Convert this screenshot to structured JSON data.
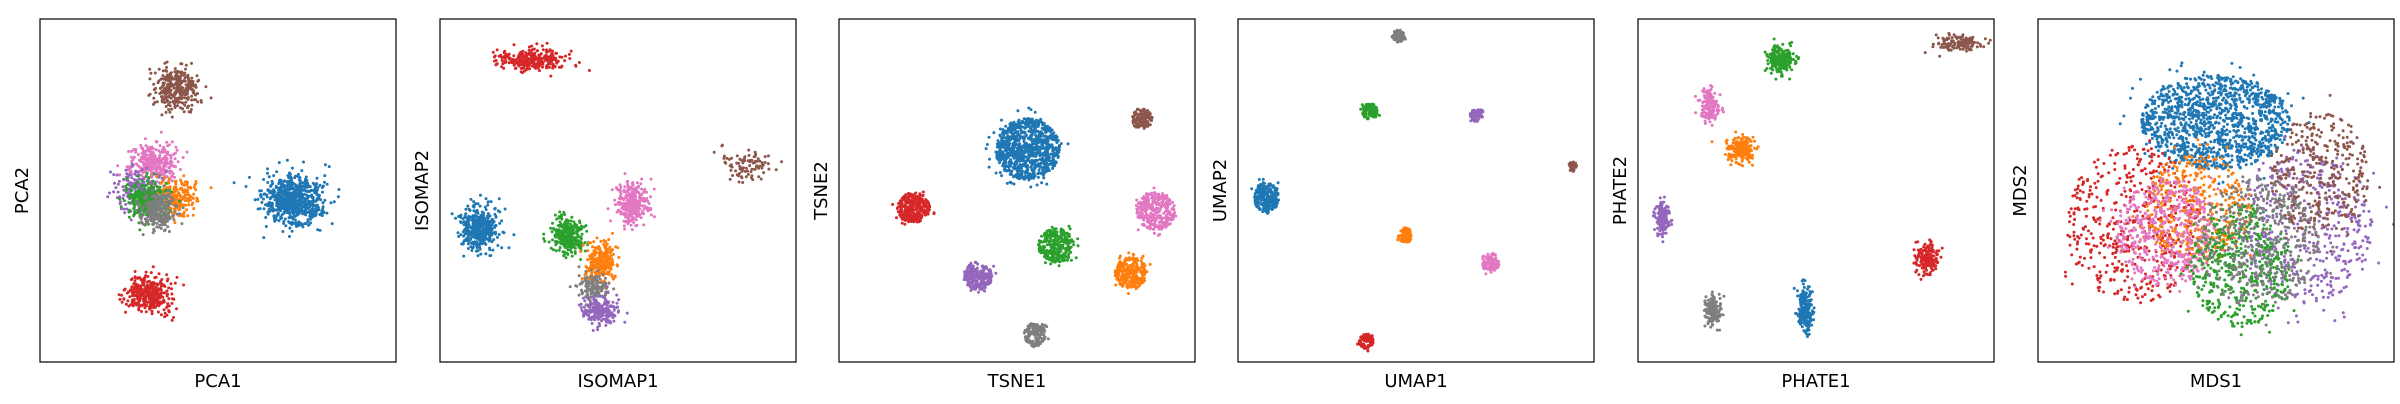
{
  "colors": {
    "blue": "#1f77b4",
    "orange": "#ff7f0e",
    "green": "#2ca02c",
    "red": "#d62728",
    "purple": "#9467bd",
    "brown": "#8c564b",
    "pink": "#e377c2",
    "gray": "#7f7f7f"
  },
  "chart_data": [
    {
      "type": "scatter",
      "xlabel": "PCA1",
      "ylabel": "PCA2",
      "xticks": [],
      "yticks": [],
      "grid": false,
      "clusters": [
        {
          "color": "blue",
          "center": [
            0.71,
            0.47
          ],
          "spread": [
            0.075,
            0.065
          ],
          "n": 700,
          "shape": "gauss"
        },
        {
          "color": "red",
          "center": [
            0.31,
            0.2
          ],
          "spread": [
            0.055,
            0.05
          ],
          "n": 350,
          "shape": "gauss"
        },
        {
          "color": "brown",
          "center": [
            0.38,
            0.8
          ],
          "spread": [
            0.055,
            0.06
          ],
          "n": 320,
          "shape": "gauss"
        },
        {
          "color": "pink",
          "center": [
            0.32,
            0.58
          ],
          "spread": [
            0.06,
            0.055
          ],
          "n": 320,
          "shape": "gauss"
        },
        {
          "color": "purple",
          "center": [
            0.28,
            0.5
          ],
          "spread": [
            0.055,
            0.055
          ],
          "n": 220,
          "shape": "gauss"
        },
        {
          "color": "orange",
          "center": [
            0.38,
            0.48
          ],
          "spread": [
            0.055,
            0.05
          ],
          "n": 240,
          "shape": "gauss"
        },
        {
          "color": "green",
          "center": [
            0.3,
            0.47
          ],
          "spread": [
            0.055,
            0.05
          ],
          "n": 260,
          "shape": "gauss"
        },
        {
          "color": "gray",
          "center": [
            0.33,
            0.44
          ],
          "spread": [
            0.045,
            0.05
          ],
          "n": 260,
          "shape": "gauss"
        }
      ]
    },
    {
      "type": "scatter",
      "xlabel": "ISOMAP1",
      "ylabel": "ISOMAP2",
      "xticks": [],
      "yticks": [],
      "grid": false,
      "clusters": [
        {
          "color": "blue",
          "center": [
            0.11,
            0.39
          ],
          "spread": [
            0.045,
            0.055
          ],
          "n": 450,
          "shape": "gauss"
        },
        {
          "color": "red",
          "center": [
            0.26,
            0.88
          ],
          "spread": [
            0.085,
            0.03
          ],
          "n": 280,
          "shape": "gauss"
        },
        {
          "color": "brown",
          "center": [
            0.86,
            0.58
          ],
          "spread": [
            0.07,
            0.045
          ],
          "n": 90,
          "shape": "gauss"
        },
        {
          "color": "pink",
          "center": [
            0.54,
            0.46
          ],
          "spread": [
            0.04,
            0.055
          ],
          "n": 300,
          "shape": "gauss"
        },
        {
          "color": "green",
          "center": [
            0.36,
            0.37
          ],
          "spread": [
            0.04,
            0.05
          ],
          "n": 300,
          "shape": "gauss"
        },
        {
          "color": "orange",
          "center": [
            0.45,
            0.29
          ],
          "spread": [
            0.04,
            0.055
          ],
          "n": 260,
          "shape": "gauss"
        },
        {
          "color": "gray",
          "center": [
            0.43,
            0.22
          ],
          "spread": [
            0.04,
            0.035
          ],
          "n": 140,
          "shape": "gauss"
        },
        {
          "color": "purple",
          "center": [
            0.45,
            0.15
          ],
          "spread": [
            0.045,
            0.035
          ],
          "n": 220,
          "shape": "gauss"
        }
      ]
    },
    {
      "type": "scatter",
      "xlabel": "TSNE1",
      "ylabel": "TSNE2",
      "xticks": [],
      "yticks": [],
      "grid": false,
      "clusters": [
        {
          "color": "blue",
          "center": [
            0.53,
            0.62
          ],
          "spread": [
            0.09,
            0.09
          ],
          "n": 900,
          "shape": "disk"
        },
        {
          "color": "red",
          "center": [
            0.21,
            0.45
          ],
          "spread": [
            0.045,
            0.045
          ],
          "n": 280,
          "shape": "disk"
        },
        {
          "color": "brown",
          "center": [
            0.85,
            0.71
          ],
          "spread": [
            0.03,
            0.03
          ],
          "n": 120,
          "shape": "disk"
        },
        {
          "color": "pink",
          "center": [
            0.89,
            0.44
          ],
          "spread": [
            0.055,
            0.055
          ],
          "n": 320,
          "shape": "disk"
        },
        {
          "color": "green",
          "center": [
            0.61,
            0.34
          ],
          "spread": [
            0.05,
            0.05
          ],
          "n": 300,
          "shape": "disk"
        },
        {
          "color": "orange",
          "center": [
            0.82,
            0.26
          ],
          "spread": [
            0.045,
            0.045
          ],
          "n": 260,
          "shape": "disk"
        },
        {
          "color": "purple",
          "center": [
            0.39,
            0.25
          ],
          "spread": [
            0.04,
            0.04
          ],
          "n": 220,
          "shape": "disk"
        },
        {
          "color": "gray",
          "center": [
            0.55,
            0.08
          ],
          "spread": [
            0.03,
            0.035
          ],
          "n": 150,
          "shape": "disk"
        }
      ]
    },
    {
      "type": "scatter",
      "xlabel": "UMAP1",
      "ylabel": "UMAP2",
      "xticks": [],
      "yticks": [],
      "grid": false,
      "clusters": [
        {
          "color": "blue",
          "center": [
            0.08,
            0.48
          ],
          "spread": [
            0.035,
            0.045
          ],
          "n": 260,
          "shape": "disk"
        },
        {
          "color": "gray",
          "center": [
            0.45,
            0.95
          ],
          "spread": [
            0.018,
            0.018
          ],
          "n": 60,
          "shape": "disk"
        },
        {
          "color": "green",
          "center": [
            0.37,
            0.73
          ],
          "spread": [
            0.022,
            0.025
          ],
          "n": 90,
          "shape": "disk"
        },
        {
          "color": "purple",
          "center": [
            0.67,
            0.72
          ],
          "spread": [
            0.018,
            0.02
          ],
          "n": 70,
          "shape": "disk"
        },
        {
          "color": "brown",
          "center": [
            0.94,
            0.57
          ],
          "spread": [
            0.012,
            0.015
          ],
          "n": 30,
          "shape": "disk"
        },
        {
          "color": "orange",
          "center": [
            0.47,
            0.37
          ],
          "spread": [
            0.02,
            0.022
          ],
          "n": 80,
          "shape": "disk"
        },
        {
          "color": "pink",
          "center": [
            0.71,
            0.29
          ],
          "spread": [
            0.025,
            0.028
          ],
          "n": 100,
          "shape": "disk"
        },
        {
          "color": "red",
          "center": [
            0.36,
            0.06
          ],
          "spread": [
            0.02,
            0.022
          ],
          "n": 80,
          "shape": "disk"
        }
      ]
    },
    {
      "type": "scatter",
      "xlabel": "PHATE1",
      "ylabel": "PHATE2",
      "xticks": [],
      "yticks": [],
      "grid": false,
      "clusters": [
        {
          "color": "brown",
          "center": [
            0.9,
            0.93
          ],
          "spread": [
            0.06,
            0.02
          ],
          "n": 140,
          "shape": "gauss"
        },
        {
          "color": "green",
          "center": [
            0.4,
            0.88
          ],
          "spread": [
            0.035,
            0.035
          ],
          "n": 220,
          "shape": "gauss"
        },
        {
          "color": "pink",
          "center": [
            0.2,
            0.75
          ],
          "spread": [
            0.025,
            0.04
          ],
          "n": 160,
          "shape": "gauss"
        },
        {
          "color": "orange",
          "center": [
            0.29,
            0.62
          ],
          "spread": [
            0.035,
            0.035
          ],
          "n": 200,
          "shape": "gauss"
        },
        {
          "color": "purple",
          "center": [
            0.07,
            0.42
          ],
          "spread": [
            0.018,
            0.045
          ],
          "n": 150,
          "shape": "gauss"
        },
        {
          "color": "red",
          "center": [
            0.81,
            0.3
          ],
          "spread": [
            0.03,
            0.04
          ],
          "n": 170,
          "shape": "gauss"
        },
        {
          "color": "gray",
          "center": [
            0.21,
            0.15
          ],
          "spread": [
            0.02,
            0.04
          ],
          "n": 140,
          "shape": "gauss"
        },
        {
          "color": "blue",
          "center": [
            0.47,
            0.15
          ],
          "spread": [
            0.02,
            0.06
          ],
          "n": 220,
          "shape": "gauss"
        }
      ]
    },
    {
      "type": "scatter",
      "xlabel": "MDS1",
      "ylabel": "MDS2",
      "xticks": [],
      "yticks": [],
      "grid": false,
      "clusters": [
        {
          "color": "blue",
          "center": [
            0.5,
            0.7
          ],
          "spread": [
            0.21,
            0.14
          ],
          "n": 1300,
          "shape": "disk"
        },
        {
          "color": "red",
          "center": [
            0.27,
            0.4
          ],
          "spread": [
            0.19,
            0.23
          ],
          "n": 500,
          "shape": "disk"
        },
        {
          "color": "purple",
          "center": [
            0.75,
            0.4
          ],
          "spread": [
            0.19,
            0.23
          ],
          "n": 500,
          "shape": "disk"
        },
        {
          "color": "brown",
          "center": [
            0.79,
            0.55
          ],
          "spread": [
            0.14,
            0.18
          ],
          "n": 350,
          "shape": "disk"
        },
        {
          "color": "orange",
          "center": [
            0.45,
            0.45
          ],
          "spread": [
            0.15,
            0.16
          ],
          "n": 420,
          "shape": "disk"
        },
        {
          "color": "pink",
          "center": [
            0.36,
            0.38
          ],
          "spread": [
            0.14,
            0.16
          ],
          "n": 480,
          "shape": "disk"
        },
        {
          "color": "green",
          "center": [
            0.57,
            0.28
          ],
          "spread": [
            0.14,
            0.18
          ],
          "n": 480,
          "shape": "disk"
        },
        {
          "color": "gray",
          "center": [
            0.62,
            0.35
          ],
          "spread": [
            0.17,
            0.19
          ],
          "n": 420,
          "shape": "disk"
        }
      ]
    }
  ]
}
